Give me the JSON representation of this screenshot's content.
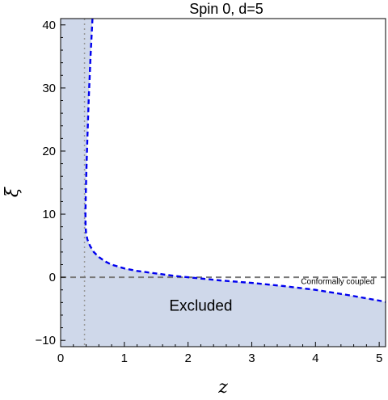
{
  "chart_data": {
    "type": "line",
    "title": "Spin 0, d=5",
    "xlabel": "z",
    "ylabel": "ξ",
    "xlim": [
      0,
      5.1
    ],
    "ylim": [
      -11,
      41
    ],
    "x_ticks": [
      0,
      1,
      2,
      3,
      4,
      5
    ],
    "y_ticks": [
      -10,
      0,
      10,
      20,
      30,
      40
    ],
    "x_tick_labels": [
      "0",
      "1",
      "2",
      "3",
      "4",
      "5"
    ],
    "y_tick_labels": [
      "−10",
      "0",
      "10",
      "20",
      "30",
      "40"
    ],
    "excluded_fill_color": "#cfd8ea",
    "excluded_label": "Excluded",
    "boundary": {
      "style": "dashed",
      "color": "#0000ee",
      "points": [
        [
          0.5,
          41
        ],
        [
          0.47,
          35
        ],
        [
          0.44,
          28
        ],
        [
          0.42,
          22
        ],
        [
          0.405,
          17
        ],
        [
          0.395,
          13
        ],
        [
          0.39,
          10
        ],
        [
          0.392,
          8
        ],
        [
          0.4,
          7
        ],
        [
          0.42,
          6
        ],
        [
          0.46,
          5
        ],
        [
          0.52,
          4
        ],
        [
          0.6,
          3.2
        ],
        [
          0.7,
          2.5
        ],
        [
          0.8,
          2.0
        ],
        [
          1.0,
          1.4
        ],
        [
          1.2,
          1.0
        ],
        [
          1.5,
          0.6
        ],
        [
          1.8,
          0.2
        ],
        [
          2.0,
          0.0
        ],
        [
          2.5,
          -0.5
        ],
        [
          3.0,
          -0.9
        ],
        [
          3.5,
          -1.4
        ],
        [
          4.0,
          -2.0
        ],
        [
          4.5,
          -2.8
        ],
        [
          5.0,
          -3.7
        ],
        [
          5.1,
          -3.9
        ]
      ]
    },
    "reference_lines": [
      {
        "orientation": "horizontal",
        "value": 0,
        "style": "dashed",
        "color": "#777777",
        "label": "Conformally coupled"
      },
      {
        "orientation": "vertical",
        "value": 0.375,
        "style": "dotted",
        "color": "#999999"
      }
    ],
    "grid": false
  }
}
